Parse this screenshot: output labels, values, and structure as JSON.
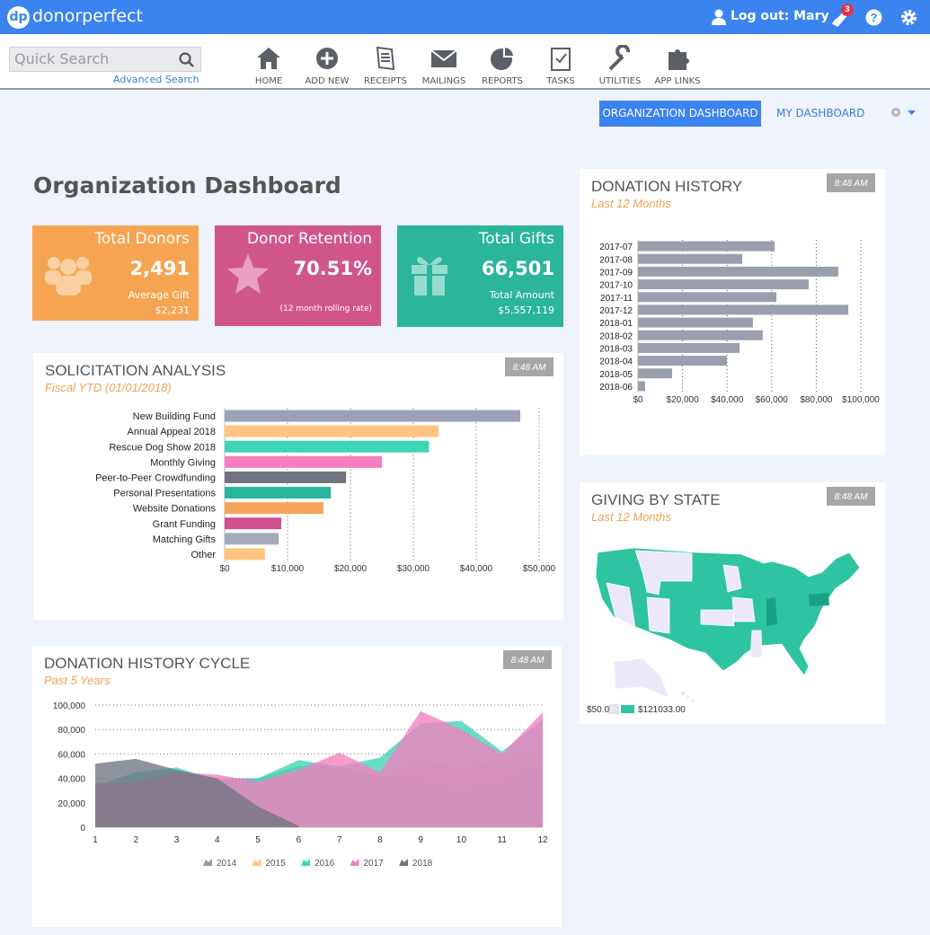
{
  "header": {
    "logo_mark": "dp",
    "logo": "donorperfect",
    "logout": "Log out: Mary",
    "notification_count": "3"
  },
  "search": {
    "placeholder": "Quick Search",
    "advanced": "Advanced Search"
  },
  "nav": [
    "HOME",
    "ADD NEW",
    "RECEIPTS",
    "MAILINGS",
    "REPORTS",
    "TASKS",
    "UTILITIES",
    "APP LINKS"
  ],
  "tabs": [
    "ORGANIZATION DASHBOARD",
    "MY DASHBOARD"
  ],
  "page_title": "Organization Dashboard",
  "cards": [
    {
      "title": "Total Donors",
      "value": "2,491",
      "sub_label": "Average Gift",
      "sub_value": "$2,231"
    },
    {
      "title": "Donor Retention",
      "value": "70.51%",
      "sub_label": "(12 month rolling rate)"
    },
    {
      "title": "Total Gifts",
      "value": "66,501",
      "sub_label": "Total Amount",
      "sub_value": "$5,557,119"
    }
  ],
  "chart_data": [
    {
      "type": "hbar",
      "title": "SOLICITATION ANALYSIS",
      "subtitle": "Fiscal YTD (01/01/2018)",
      "updated": "8:48 AM",
      "categories": [
        "New Building Fund",
        "Annual Appeal 2018",
        "Rescue Dog Show 2018",
        "Monthly Giving",
        "Peer-to-Peer Crowdfunding",
        "Personal Presentations",
        "Website Donations",
        "Grant Funding",
        "Matching Gifts",
        "Other"
      ],
      "values": [
        47000,
        34000,
        32500,
        25000,
        19300,
        16900,
        15700,
        9000,
        8600,
        6400
      ],
      "colors": [
        "#9aa1b4",
        "#ffc47f",
        "#3fd5b4",
        "#f47ec0",
        "#6f7480",
        "#27b79a",
        "#f5a55a",
        "#cf508a",
        "#a3aab9",
        "#ffc47f"
      ],
      "xlim": [
        0,
        50000
      ],
      "xticks": [
        {
          "value": 0,
          "label": "$0"
        },
        {
          "value": 10000,
          "label": "$10,000"
        },
        {
          "value": 20000,
          "label": "$20,000"
        },
        {
          "value": 30000,
          "label": "$30,000"
        },
        {
          "value": 40000,
          "label": "$40,000"
        },
        {
          "value": 50000,
          "label": "$50,000"
        }
      ],
      "grid": true
    },
    {
      "type": "hbar",
      "title": "DONATION HISTORY",
      "subtitle": "Last 12 Months",
      "updated": "8:48 AM",
      "categories": [
        "2017-07",
        "2017-08",
        "2017-09",
        "2017-10",
        "2017-11",
        "2017-12",
        "2018-01",
        "2018-02",
        "2018-03",
        "2018-04",
        "2018-05",
        "2018-06"
      ],
      "values": [
        61300,
        46800,
        89900,
        76600,
        62100,
        94400,
        51600,
        56000,
        45600,
        39900,
        15300,
        3200
      ],
      "color": "#9a9fae",
      "xlim": [
        0,
        100000
      ],
      "xticks": [
        {
          "value": 0,
          "label": "$0"
        },
        {
          "value": 20000,
          "label": "$20,000"
        },
        {
          "value": 40000,
          "label": "$40,000"
        },
        {
          "value": 60000,
          "label": "$60,000"
        },
        {
          "value": 80000,
          "label": "$80,000"
        },
        {
          "value": 100000,
          "label": "$100,000"
        }
      ],
      "grid": true
    },
    {
      "type": "area",
      "title": "DONATION HISTORY CYCLE",
      "subtitle": "Past 5 Years",
      "updated": "8:48 AM",
      "x": [
        1,
        2,
        3,
        4,
        5,
        6,
        7,
        8,
        9,
        10,
        11,
        12
      ],
      "series": [
        {
          "name": "2014",
          "color": "#8f97aa",
          "values": [
            35000,
            35000,
            40000,
            40000,
            40000,
            50000,
            50000,
            42000,
            40000,
            30000,
            38000,
            55000
          ]
        },
        {
          "name": "2015",
          "color": "#ffc47f",
          "values": [
            30000,
            40000,
            43000,
            40000,
            38000,
            48000,
            49000,
            40000,
            55000,
            48000,
            55000,
            58000
          ]
        },
        {
          "name": "2016",
          "color": "#3fd5b4",
          "values": [
            34000,
            45000,
            49000,
            38000,
            40000,
            55000,
            50000,
            57000,
            85000,
            87000,
            62000,
            88000
          ]
        },
        {
          "name": "2017",
          "color": "#f47ec0",
          "values": [
            36000,
            37000,
            45000,
            43000,
            37000,
            47000,
            61000,
            45000,
            95000,
            80000,
            60000,
            94000
          ]
        },
        {
          "name": "2018",
          "color": "#6f7480",
          "values": [
            52000,
            56000,
            47000,
            40000,
            17000,
            1000,
            null,
            null,
            null,
            null,
            null,
            null
          ]
        }
      ],
      "xlim": [
        1,
        12
      ],
      "xticks": [
        1,
        2,
        3,
        4,
        5,
        6,
        7,
        8,
        9,
        10,
        11,
        12
      ],
      "ylim": [
        0,
        100000
      ],
      "yticks": [
        0,
        {
          "value": 20000,
          "label": "20,000"
        },
        {
          "value": 40000,
          "label": "40,000"
        },
        {
          "value": 60000,
          "label": "60,000"
        },
        {
          "value": 80000,
          "label": "80,000"
        },
        {
          "value": 100000,
          "label": "100,000"
        }
      ],
      "grid": true,
      "legend": "bottom"
    },
    {
      "type": "map",
      "title": "GIVING BY STATE",
      "subtitle": "Last 12 Months",
      "updated": "8:48 AM",
      "legend_min": "$50.00",
      "legend_max": "$121033.00",
      "color_min": "#ebe9f7",
      "color_max": "#2ec3a1"
    }
  ]
}
